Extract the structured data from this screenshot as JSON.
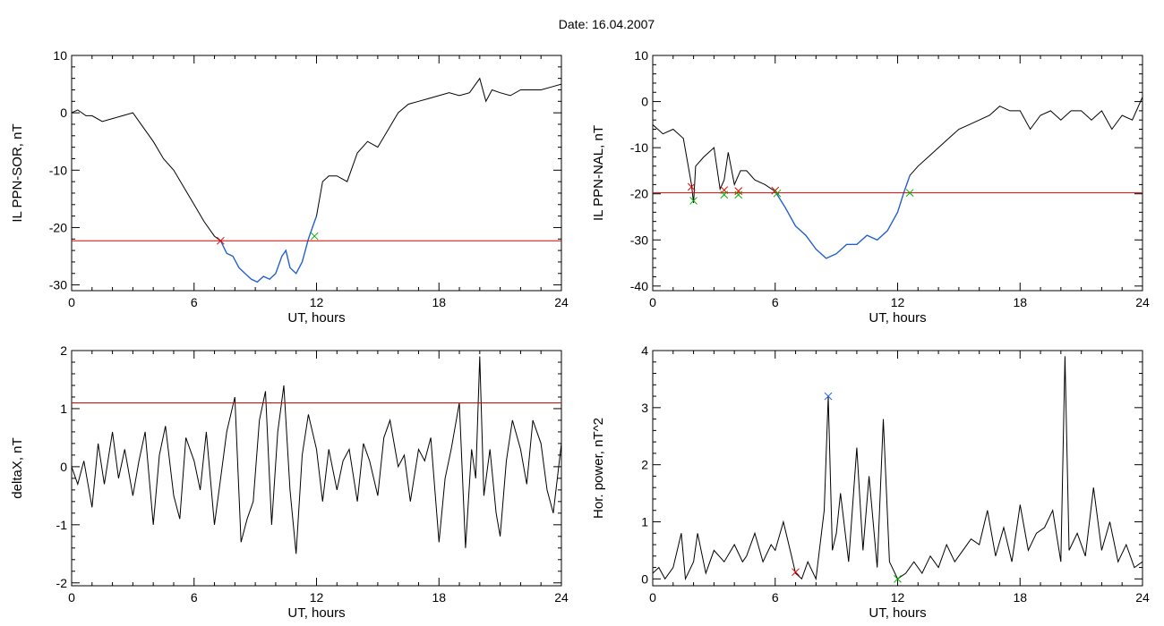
{
  "page": {
    "title": "Date:  16.04.2007",
    "colors": {
      "axes": "#000000",
      "data": "#000000",
      "threshold": "#e00000",
      "selection": "#1f5fd4",
      "marker_red": "#e00000",
      "marker_green": "#00b000",
      "marker_blue": "#1f5fd4"
    }
  },
  "chart_data": [
    {
      "type": "line",
      "ylabel": "IL PPN-SOR, nT",
      "xlabel": "UT, hours",
      "xlim": [
        0,
        24
      ],
      "ylim": [
        -31,
        10
      ],
      "xticks": [
        0,
        6,
        12,
        18,
        24
      ],
      "yticks": [
        10,
        0,
        -10,
        -20,
        -30
      ],
      "threshold": -22.3,
      "series": [
        {
          "x": [
            0,
            0.3,
            0.7,
            1.0,
            1.5,
            2.0,
            2.5,
            3.0,
            3.5,
            4.0,
            4.5,
            5.0,
            5.5,
            6.0,
            6.5,
            7.0,
            7.3,
            7.6,
            7.9,
            8.2,
            8.5,
            8.8,
            9.1,
            9.4,
            9.7,
            10.0,
            10.3,
            10.5,
            10.7,
            11.0,
            11.3,
            11.6,
            11.8,
            12.0,
            12.3,
            12.6,
            13.0,
            13.5,
            14.0,
            14.5,
            15.0,
            15.5,
            16.0,
            16.5,
            17.0,
            17.5,
            18.0,
            18.5,
            19.0,
            19.5,
            20.0,
            20.3,
            20.6,
            21.0,
            21.5,
            22.0,
            22.5,
            23.0,
            23.5,
            24.0
          ],
          "y": [
            0,
            0.5,
            -0.5,
            -0.5,
            -1.5,
            -1.0,
            -0.5,
            0,
            -2.5,
            -5,
            -8,
            -10,
            -13,
            -16,
            -19,
            -21.5,
            -22.3,
            -24.5,
            -25,
            -27,
            -28,
            -29,
            -29.5,
            -28.5,
            -29,
            -28,
            -25,
            -24,
            -27,
            -28,
            -26,
            -22,
            -20,
            -18,
            -12,
            -11,
            -11,
            -12,
            -7,
            -5,
            -6,
            -3,
            0,
            1.5,
            2,
            2.5,
            3,
            3.5,
            3,
            3.5,
            6,
            2,
            4,
            3.5,
            3,
            4,
            4,
            4,
            4.5,
            5
          ]
        }
      ],
      "selection": {
        "x_start": 7.3,
        "x_end": 12.0
      },
      "markers": [
        {
          "x": 7.3,
          "y": -22.3,
          "color": "red"
        },
        {
          "x": 11.9,
          "y": -21.5,
          "color": "green"
        }
      ]
    },
    {
      "type": "line",
      "ylabel": "IL PPN-NAL, nT",
      "xlabel": "UT, hours",
      "xlim": [
        0,
        24
      ],
      "ylim": [
        -41,
        10
      ],
      "xticks": [
        0,
        6,
        12,
        18,
        24
      ],
      "yticks": [
        10,
        0,
        -10,
        -20,
        -30,
        -40
      ],
      "threshold": -19.8,
      "series": [
        {
          "x": [
            0,
            0.5,
            1.0,
            1.5,
            1.9,
            2.0,
            2.1,
            2.5,
            3.0,
            3.3,
            3.5,
            3.7,
            4.0,
            4.3,
            4.6,
            5.0,
            5.5,
            6.0,
            6.5,
            7.0,
            7.5,
            8.0,
            8.5,
            9.0,
            9.5,
            10.0,
            10.5,
            11.0,
            11.5,
            12.0,
            12.3,
            12.6,
            13.0,
            13.5,
            14.0,
            14.5,
            15.0,
            15.5,
            16.0,
            16.5,
            17.0,
            17.5,
            18.0,
            18.5,
            19.0,
            19.5,
            20.0,
            20.5,
            21.0,
            21.5,
            22.0,
            22.5,
            23.0,
            23.5,
            24.0
          ],
          "y": [
            -5,
            -7,
            -6,
            -8,
            -18,
            -22,
            -14,
            -12,
            -10,
            -19,
            -17,
            -11,
            -18,
            -15,
            -15,
            -17,
            -18,
            -19.5,
            -23,
            -27,
            -29,
            -32,
            -34,
            -33,
            -31,
            -31,
            -29,
            -30,
            -28,
            -24,
            -19.8,
            -16,
            -14,
            -12,
            -10,
            -8,
            -6,
            -5,
            -4,
            -3,
            -1,
            -2,
            -2,
            -6,
            -3,
            -2,
            -4,
            -2,
            -2,
            -4,
            -2,
            -6,
            -3,
            -4,
            1
          ]
        }
      ],
      "selection": {
        "x_start": 6.0,
        "x_end": 12.6
      },
      "markers": [
        {
          "x": 1.9,
          "y": -18.5,
          "color": "red"
        },
        {
          "x": 2.0,
          "y": -21.5,
          "color": "green"
        },
        {
          "x": 3.5,
          "y": -19.2,
          "color": "red"
        },
        {
          "x": 3.5,
          "y": -20.2,
          "color": "green"
        },
        {
          "x": 4.2,
          "y": -19.4,
          "color": "red"
        },
        {
          "x": 4.2,
          "y": -20.2,
          "color": "green"
        },
        {
          "x": 6.0,
          "y": -19.3,
          "color": "red"
        },
        {
          "x": 6.1,
          "y": -19.9,
          "color": "green"
        },
        {
          "x": 12.6,
          "y": -19.8,
          "color": "green"
        }
      ]
    },
    {
      "type": "line",
      "ylabel": "deltaX, nT",
      "xlabel": "UT, hours",
      "xlim": [
        0,
        24
      ],
      "ylim": [
        -2.05,
        2.0
      ],
      "xticks": [
        0,
        6,
        12,
        18,
        24
      ],
      "yticks": [
        2,
        1,
        0,
        -1,
        -2
      ],
      "threshold": 1.1,
      "series": [
        {
          "x": [
            0,
            0.3,
            0.6,
            1.0,
            1.3,
            1.6,
            2.0,
            2.3,
            2.6,
            3.0,
            3.3,
            3.6,
            4.0,
            4.3,
            4.6,
            5.0,
            5.3,
            5.6,
            6.0,
            6.3,
            6.6,
            7.0,
            7.3,
            7.6,
            8.0,
            8.3,
            8.6,
            8.9,
            9.2,
            9.5,
            9.8,
            10.1,
            10.4,
            10.7,
            11.0,
            11.3,
            11.6,
            12.0,
            12.3,
            12.6,
            13.0,
            13.3,
            13.6,
            14.0,
            14.3,
            14.6,
            15.0,
            15.3,
            15.6,
            16.0,
            16.3,
            16.6,
            17.0,
            17.3,
            17.6,
            18.0,
            18.3,
            18.6,
            19.0,
            19.3,
            19.6,
            19.8,
            20.0,
            20.2,
            20.5,
            20.8,
            21.0,
            21.3,
            21.6,
            22.0,
            22.3,
            22.6,
            23.0,
            23.3,
            23.6,
            24.0
          ],
          "y": [
            0,
            -0.3,
            0.1,
            -0.7,
            0.4,
            -0.3,
            0.6,
            -0.2,
            0.3,
            -0.5,
            0.1,
            0.6,
            -1.0,
            0.2,
            0.7,
            -0.5,
            -0.9,
            0.5,
            0.1,
            -0.4,
            0.6,
            -1.0,
            -0.2,
            0.6,
            1.2,
            -1.3,
            -0.9,
            -0.6,
            0.8,
            1.3,
            -1.0,
            0.6,
            1.4,
            -0.4,
            -1.5,
            0.2,
            0.9,
            0.3,
            -0.6,
            0.3,
            -0.4,
            0.1,
            0.3,
            -0.6,
            0.4,
            0.1,
            -0.5,
            0.5,
            0.8,
            0.0,
            0.2,
            -0.6,
            0.3,
            0.1,
            0.5,
            -1.3,
            -0.2,
            0.3,
            1.1,
            -1.4,
            0.3,
            -0.2,
            1.9,
            -0.5,
            0.3,
            -0.8,
            -1.2,
            0.1,
            0.8,
            0.3,
            -0.3,
            0.8,
            0.4,
            -0.4,
            -0.8,
            0.4
          ]
        }
      ]
    },
    {
      "type": "line",
      "ylabel": "Hor. power, nT^2",
      "xlabel": "UT, hours",
      "xlim": [
        0,
        24
      ],
      "ylim": [
        -0.12,
        4.0
      ],
      "xticks": [
        0,
        6,
        12,
        18,
        24
      ],
      "yticks": [
        4,
        3,
        2,
        1,
        0
      ],
      "series": [
        {
          "x": [
            0,
            0.3,
            0.6,
            1.0,
            1.4,
            1.6,
            2.0,
            2.2,
            2.6,
            3.0,
            3.5,
            4.0,
            4.4,
            4.6,
            5.0,
            5.4,
            5.8,
            6.0,
            6.4,
            6.8,
            7.0,
            7.3,
            7.6,
            8.0,
            8.4,
            8.6,
            8.8,
            9.0,
            9.2,
            9.6,
            10.0,
            10.3,
            10.6,
            11.0,
            11.3,
            11.6,
            12.0,
            12.4,
            12.8,
            13.2,
            13.6,
            14.0,
            14.4,
            14.8,
            15.2,
            15.6,
            16.0,
            16.4,
            16.8,
            17.2,
            17.6,
            18.0,
            18.4,
            18.8,
            19.2,
            19.6,
            20.0,
            20.2,
            20.4,
            20.8,
            21.2,
            21.6,
            22.0,
            22.4,
            22.8,
            23.2,
            23.6,
            24.0
          ],
          "y": [
            0.1,
            0.2,
            0.0,
            0.2,
            0.8,
            0.0,
            0.3,
            0.8,
            0.1,
            0.5,
            0.3,
            0.6,
            0.3,
            0.4,
            0.8,
            0.3,
            0.6,
            0.5,
            1.0,
            0.4,
            0.1,
            0.0,
            0.3,
            0.0,
            1.2,
            3.2,
            0.5,
            0.8,
            1.5,
            0.3,
            2.3,
            0.5,
            1.8,
            0.2,
            2.8,
            0.3,
            0.0,
            0.1,
            0.3,
            0.1,
            0.4,
            0.2,
            0.6,
            0.3,
            0.5,
            0.7,
            0.6,
            1.2,
            0.4,
            0.9,
            0.3,
            1.3,
            0.5,
            0.8,
            0.9,
            1.2,
            0.3,
            3.9,
            0.5,
            0.8,
            0.4,
            1.6,
            0.5,
            1.0,
            0.3,
            0.6,
            0.2,
            0.3
          ]
        }
      ],
      "markers": [
        {
          "x": 7.0,
          "y": 0.12,
          "color": "red"
        },
        {
          "x": 8.6,
          "y": 3.2,
          "color": "blue"
        },
        {
          "x": 12.0,
          "y": 0.0,
          "color": "green"
        }
      ]
    }
  ]
}
